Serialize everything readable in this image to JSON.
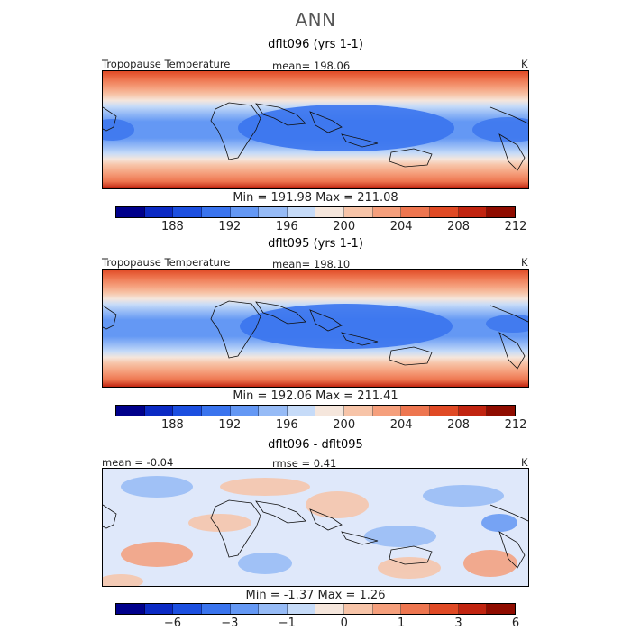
{
  "main_title": "ANN",
  "panels": [
    {
      "title": "dflt096 (yrs 1-1)",
      "left_label": "Tropopause Temperature",
      "mid_label": "mean= 198.06",
      "right_label": "K",
      "minmax": "Min = 191.98 Max = 211.08"
    },
    {
      "title": "dflt095 (yrs 1-1)",
      "left_label": "Tropopause Temperature",
      "mid_label": "mean= 198.10",
      "right_label": "K",
      "minmax": "Min = 192.06 Max = 211.41"
    },
    {
      "title": "dflt096 - dflt095",
      "left_label": "mean = -0.04",
      "mid_label": "rmse = 0.41",
      "right_label": "K",
      "minmax": "Min = -1.37 Max = 1.26"
    }
  ],
  "colorbar_abs": {
    "colors": [
      "#00008b",
      "#0b2ac4",
      "#1c4fe0",
      "#3a74ee",
      "#6498f4",
      "#96bbf6",
      "#c6dbf8",
      "#f5e6dc",
      "#f7c4a8",
      "#f59f7c",
      "#ee7650",
      "#e04a25",
      "#c12410",
      "#8f0c00"
    ],
    "ticks": [
      "188",
      "192",
      "196",
      "200",
      "204",
      "208",
      "212"
    ]
  },
  "colorbar_diff": {
    "colors": [
      "#00008b",
      "#0b2ac4",
      "#1c4fe0",
      "#3a74ee",
      "#6498f4",
      "#96bbf6",
      "#c6dbf8",
      "#f5e6dc",
      "#f7c4a8",
      "#f59f7c",
      "#ee7650",
      "#e04a25",
      "#c12410",
      "#8f0c00"
    ],
    "ticks": [
      "−6",
      "−3",
      "−1",
      "0",
      "1",
      "3",
      "6"
    ]
  }
}
